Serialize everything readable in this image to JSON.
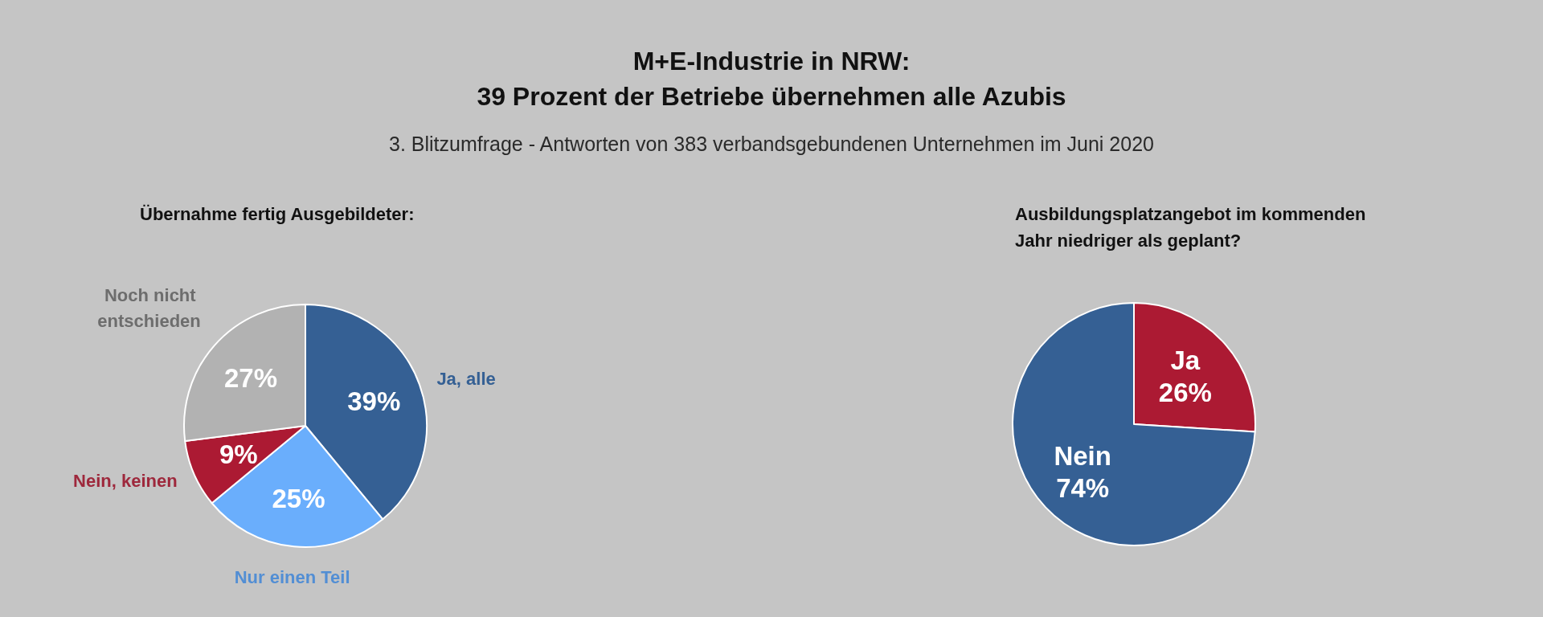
{
  "chart_data": [
    {
      "type": "other",
      "title": "M+E-Industrie in NRW:\n39 Prozent der Betriebe übernehmen alle Azubis",
      "subtitle": "3. Blitzumfrage - Antworten von 383 verbandsgebundenen Unternehmen im Juni 2020"
    },
    {
      "type": "pie",
      "title": "Übernahme fertig Ausgebildeter:",
      "categories": [
        "Ja, alle",
        "Nur einen Teil",
        "Nein, keinen",
        "Noch nicht entschieden"
      ],
      "values": [
        39,
        25,
        9,
        27
      ],
      "colors": [
        "#356094",
        "#6aaefc",
        "#ac1a33",
        "#b2b2b2"
      ],
      "value_labels": [
        "39%",
        "25%",
        "9%",
        "27%"
      ]
    },
    {
      "type": "pie",
      "title": "Ausbildungsplatzangebot im kommenden\nJahr niedriger als geplant?",
      "categories": [
        "Ja",
        "Nein"
      ],
      "values": [
        26,
        74
      ],
      "colors": [
        "#ac1a33",
        "#356094"
      ],
      "value_labels": [
        "26%",
        "74%"
      ]
    }
  ]
}
